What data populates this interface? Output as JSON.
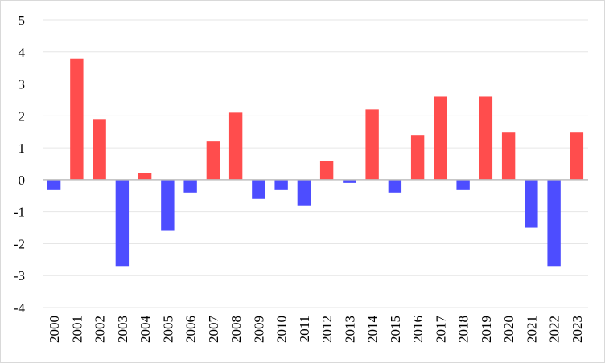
{
  "chart_data": {
    "type": "bar",
    "title": "",
    "xlabel": "",
    "ylabel": "",
    "ylim": [
      -4,
      5
    ],
    "yticks": [
      5,
      4,
      3,
      2,
      1,
      0,
      -1,
      -2,
      -3,
      -4
    ],
    "grid": true,
    "legend": "none",
    "colors": {
      "positive": "#ff4d4d",
      "negative": "#4d4dff"
    },
    "categories": [
      "2000",
      "2001",
      "2002",
      "2003",
      "2004",
      "2005",
      "2006",
      "2007",
      "2008",
      "2009",
      "2010",
      "2011",
      "2012",
      "2013",
      "2014",
      "2015",
      "2016",
      "2017",
      "2018",
      "2019",
      "2020",
      "2021",
      "2022",
      "2023"
    ],
    "values": [
      -0.3,
      3.8,
      1.9,
      -2.7,
      0.2,
      -1.6,
      -0.4,
      1.2,
      2.1,
      -0.6,
      -0.3,
      -0.8,
      0.6,
      -0.1,
      2.2,
      -0.4,
      1.4,
      2.6,
      -0.3,
      2.6,
      1.5,
      -1.5,
      -2.7,
      1.5
    ]
  }
}
